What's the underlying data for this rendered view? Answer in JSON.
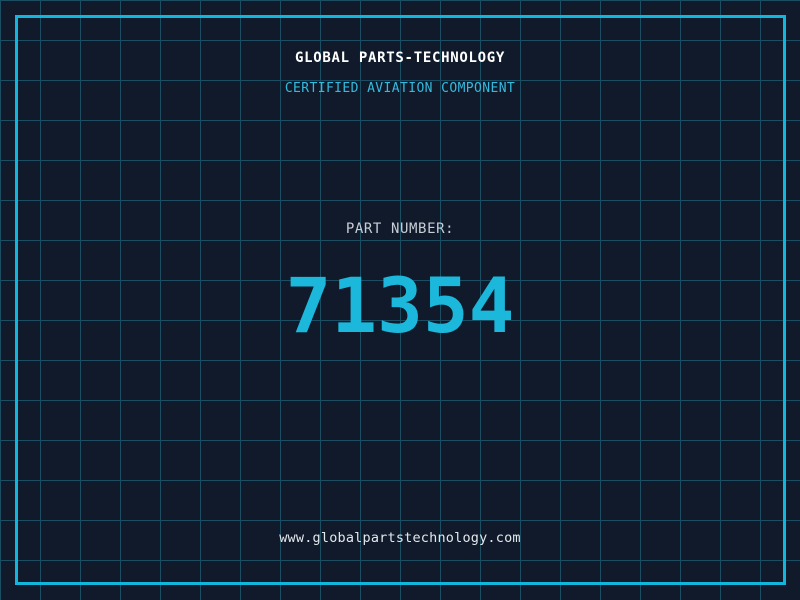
{
  "header": {
    "title": "GLOBAL PARTS-TECHNOLOGY",
    "subtitle": "CERTIFIED AVIATION COMPONENT"
  },
  "part": {
    "label": "PART NUMBER:",
    "number": "71354"
  },
  "footer": {
    "website": "www.globalpartstechnology.com"
  },
  "colors": {
    "background": "#101a2b",
    "grid_line": "#1b4d63",
    "frame_accent": "#10b6dc",
    "title_color": "#ffffff",
    "subtitle_color": "#35bade",
    "label_color": "#c7ced6",
    "part_number_color": "#1cb8dc",
    "website_color": "#e3e8ec"
  }
}
